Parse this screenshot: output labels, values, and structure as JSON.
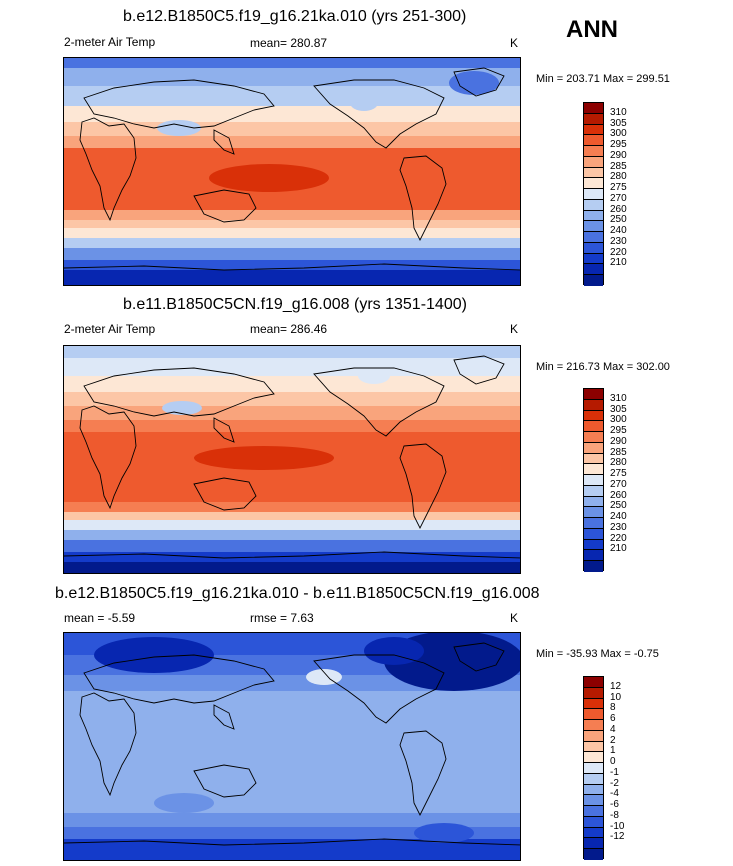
{
  "season": "ANN",
  "colors": {
    "temp": [
      "#8c0000",
      "#b51a00",
      "#d93008",
      "#ee5a2e",
      "#f57e52",
      "#f9a47c",
      "#fcc6a6",
      "#fde7d5",
      "#dde8f7",
      "#b5cdf2",
      "#8fb0ec",
      "#6b92e6",
      "#4a72e0",
      "#2c55d8",
      "#143bca",
      "#0726b0",
      "#021a8c"
    ],
    "diff": [
      "#8c0000",
      "#b51a00",
      "#d93008",
      "#ee5a2e",
      "#f57e52",
      "#f9a47c",
      "#fcc6a6",
      "#fde7d5",
      "#dde8f7",
      "#b5cdf2",
      "#8fb0ec",
      "#6b92e6",
      "#4a72e0",
      "#2c55d8",
      "#143bca",
      "#0726b0",
      "#021a8c"
    ]
  },
  "panels": [
    {
      "title": "b.e12.B1850C5.f19_g16.21ka.010 (yrs 251-300)",
      "left_label": "2-meter Air Temp",
      "mean_text": "mean= 280.87",
      "units": "K",
      "minmax": "Min = 203.71 Max = 299.51",
      "scale": "temp",
      "labels": [
        "310",
        "305",
        "300",
        "295",
        "290",
        "285",
        "280",
        "275",
        "270",
        "260",
        "250",
        "240",
        "230",
        "220",
        "210"
      ]
    },
    {
      "title": "b.e11.B1850C5CN.f19_g16.008 (yrs 1351-1400)",
      "left_label": "2-meter Air Temp",
      "mean_text": "mean= 286.46",
      "units": "K",
      "minmax": "Min = 216.73 Max = 302.00",
      "scale": "temp",
      "labels": [
        "310",
        "305",
        "300",
        "295",
        "290",
        "285",
        "280",
        "275",
        "270",
        "260",
        "250",
        "240",
        "230",
        "220",
        "210"
      ]
    },
    {
      "title": "b.e12.B1850C5.f19_g16.21ka.010 - b.e11.B1850C5CN.f19_g16.008",
      "left_label": "mean =  -5.59",
      "mean_text": "rmse =   7.63",
      "units": "K",
      "minmax": "Min = -35.93 Max =  -0.75",
      "scale": "diff",
      "labels": [
        "12",
        "10",
        "8",
        "6",
        "4",
        "2",
        "1",
        "0",
        "-1",
        "-2",
        "-4",
        "-6",
        "-8",
        "-10",
        "-12"
      ]
    }
  ]
}
